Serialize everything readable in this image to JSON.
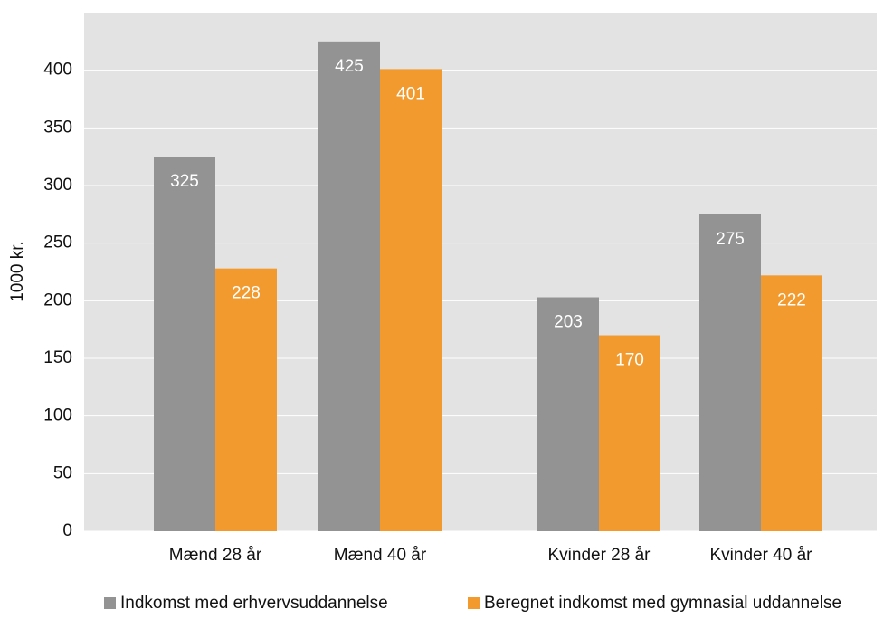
{
  "chart_data": {
    "type": "bar",
    "y_label": "1000 kr.",
    "categories": [
      "Mænd 28 år",
      "Mænd 40 år",
      "Kvinder 28 år",
      "Kvinder 40 år"
    ],
    "series": [
      {
        "name": "Indkomst med erhvervsuddannelse",
        "color": "#939393",
        "values": [
          325,
          425,
          203,
          275
        ]
      },
      {
        "name": "Beregnet indkomst med gymnasial uddannelse",
        "color": "#f39a2e",
        "values": [
          228,
          401,
          170,
          222
        ]
      }
    ],
    "ylim": [
      0,
      450
    ],
    "yticks": [
      0,
      50,
      100,
      150,
      200,
      250,
      300,
      350,
      400
    ],
    "grid": true,
    "legend": "bottom"
  }
}
